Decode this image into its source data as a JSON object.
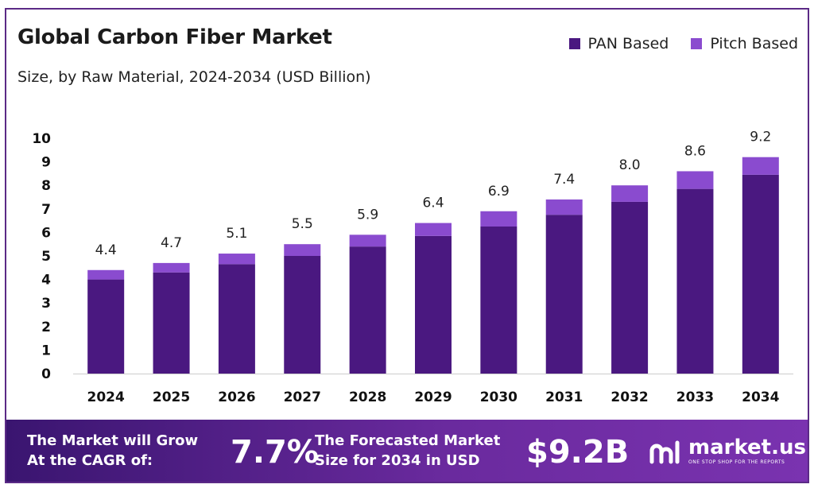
{
  "header": {
    "title": "Global Carbon Fiber Market",
    "subtitle": "Size, by Raw Material, 2024-2034 (USD Billion)"
  },
  "legend": [
    {
      "label": "PAN Based",
      "color": "#4a1880"
    },
    {
      "label": "Pitch Based",
      "color": "#8a4bcf"
    }
  ],
  "chart_data": {
    "type": "bar",
    "stacked": true,
    "categories": [
      "2024",
      "2025",
      "2026",
      "2027",
      "2028",
      "2029",
      "2030",
      "2031",
      "2032",
      "2033",
      "2034"
    ],
    "series": [
      {
        "name": "PAN Based",
        "values": [
          4.0,
          4.3,
          4.65,
          5.0,
          5.4,
          5.85,
          6.25,
          6.75,
          7.3,
          7.85,
          8.45
        ]
      },
      {
        "name": "Pitch Based",
        "values": [
          0.4,
          0.4,
          0.45,
          0.5,
          0.5,
          0.55,
          0.65,
          0.65,
          0.7,
          0.75,
          0.75
        ]
      }
    ],
    "totals_labels": [
      "4.4",
      "4.7",
      "5.1",
      "5.5",
      "5.9",
      "6.4",
      "6.9",
      "7.4",
      "8.0",
      "8.6",
      "9.2"
    ],
    "ylim": [
      0,
      10
    ],
    "yticks": [
      "0",
      "1",
      "2",
      "3",
      "4",
      "5",
      "6",
      "7",
      "8",
      "9",
      "10"
    ],
    "grid": false,
    "legend_position": "top-right"
  },
  "footer": {
    "cagr_text_line1": "The Market will Grow",
    "cagr_text_line2": "At the CAGR of:",
    "cagr_value": "7.7%",
    "forecast_text_line1": "The Forecasted Market",
    "forecast_text_line2": "Size for 2034 in USD",
    "forecast_value": "$9.2B",
    "brand_name": "market.us",
    "brand_tagline": "ONE STOP SHOP FOR THE REPORTS"
  }
}
